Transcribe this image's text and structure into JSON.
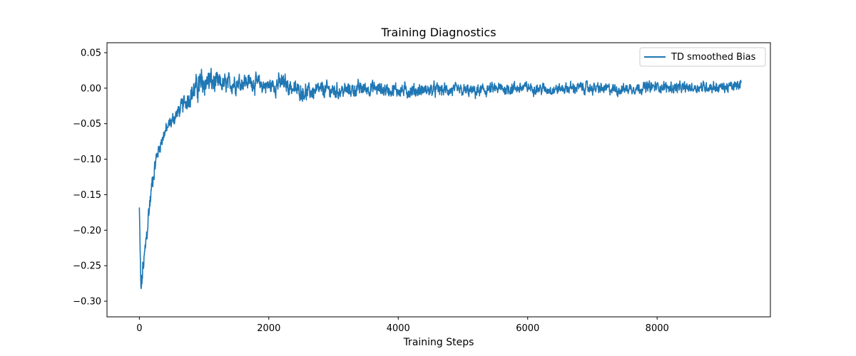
{
  "chart_data": {
    "type": "line",
    "title": "Training Diagnostics",
    "xlabel": "Training Steps",
    "ylabel": "",
    "xlim": [
      -500,
      9750
    ],
    "ylim": [
      -0.322,
      0.064
    ],
    "xticks": [
      0,
      2000,
      4000,
      6000,
      8000
    ],
    "xtick_labels": [
      "0",
      "2000",
      "4000",
      "6000",
      "8000"
    ],
    "yticks": [
      -0.3,
      -0.25,
      -0.2,
      -0.15,
      -0.1,
      -0.05,
      0.0,
      0.05
    ],
    "ytick_labels": [
      "−0.30",
      "−0.25",
      "−0.20",
      "−0.15",
      "−0.10",
      "−0.05",
      "0.00",
      "0.05"
    ],
    "grid": false,
    "legend_position": "top-right",
    "series": [
      {
        "name": "TD smoothed Bias",
        "color": "#1f77b4",
        "x": [
          0,
          10,
          25,
          40,
          60,
          80,
          100,
          120,
          150,
          180,
          200,
          230,
          260,
          300,
          340,
          380,
          420,
          460,
          500,
          550,
          600,
          650,
          700,
          750,
          800,
          850,
          900,
          950,
          1000,
          1050,
          1100,
          1200,
          1300,
          1400,
          1500,
          1600,
          1700,
          1800,
          1900,
          2000,
          2100,
          2200,
          2300,
          2400,
          2500,
          2600,
          2700,
          2800,
          2900,
          3000,
          3200,
          3400,
          3600,
          3800,
          4000,
          4200,
          4400,
          4600,
          4800,
          5000,
          5200,
          5400,
          5600,
          5800,
          6000,
          6200,
          6400,
          6600,
          6800,
          7000,
          7200,
          7400,
          7600,
          7800,
          8000,
          8200,
          8400,
          8600,
          8800,
          9000,
          9200,
          9300
        ],
        "y": [
          -0.168,
          -0.22,
          -0.29,
          -0.27,
          -0.25,
          -0.24,
          -0.22,
          -0.2,
          -0.17,
          -0.15,
          -0.13,
          -0.115,
          -0.1,
          -0.085,
          -0.075,
          -0.065,
          -0.058,
          -0.052,
          -0.047,
          -0.04,
          -0.033,
          -0.027,
          -0.02,
          -0.014,
          -0.008,
          -0.003,
          0.002,
          0.005,
          0.008,
          0.01,
          0.009,
          0.006,
          0.005,
          0.006,
          0.008,
          0.01,
          0.009,
          0.007,
          0.004,
          0.003,
          0.005,
          0.007,
          0.004,
          -0.002,
          -0.004,
          -0.006,
          -0.005,
          -0.003,
          -0.002,
          -0.004,
          -0.003,
          -0.001,
          0.0,
          -0.002,
          -0.003,
          -0.004,
          -0.003,
          -0.002,
          -0.003,
          -0.004,
          -0.005,
          -0.002,
          -0.001,
          0.0,
          0.001,
          -0.001,
          -0.002,
          0.0,
          0.001,
          0.0,
          -0.001,
          -0.002,
          0.0,
          0.001,
          0.002,
          0.001,
          0.0,
          0.001,
          0.002,
          0.001,
          0.002,
          0.006
        ],
        "noise_amplitude": [
          0.0,
          0.01,
          0.015,
          0.016,
          0.016,
          0.016,
          0.016,
          0.015,
          0.014,
          0.012,
          0.012,
          0.011,
          0.01,
          0.009,
          0.009,
          0.009,
          0.009,
          0.009,
          0.009,
          0.009,
          0.009,
          0.01,
          0.011,
          0.012,
          0.013,
          0.014,
          0.016,
          0.018,
          0.02,
          0.018,
          0.016,
          0.014,
          0.012,
          0.012,
          0.012,
          0.012,
          0.011,
          0.011,
          0.011,
          0.011,
          0.012,
          0.012,
          0.011,
          0.01,
          0.01,
          0.01,
          0.01,
          0.01,
          0.01,
          0.01,
          0.009,
          0.009,
          0.009,
          0.009,
          0.009,
          0.009,
          0.008,
          0.008,
          0.008,
          0.008,
          0.008,
          0.008,
          0.008,
          0.008,
          0.007,
          0.007,
          0.007,
          0.007,
          0.007,
          0.007,
          0.007,
          0.007,
          0.007,
          0.007,
          0.007,
          0.007,
          0.007,
          0.007,
          0.007,
          0.007,
          0.007,
          0.006
        ]
      }
    ]
  }
}
